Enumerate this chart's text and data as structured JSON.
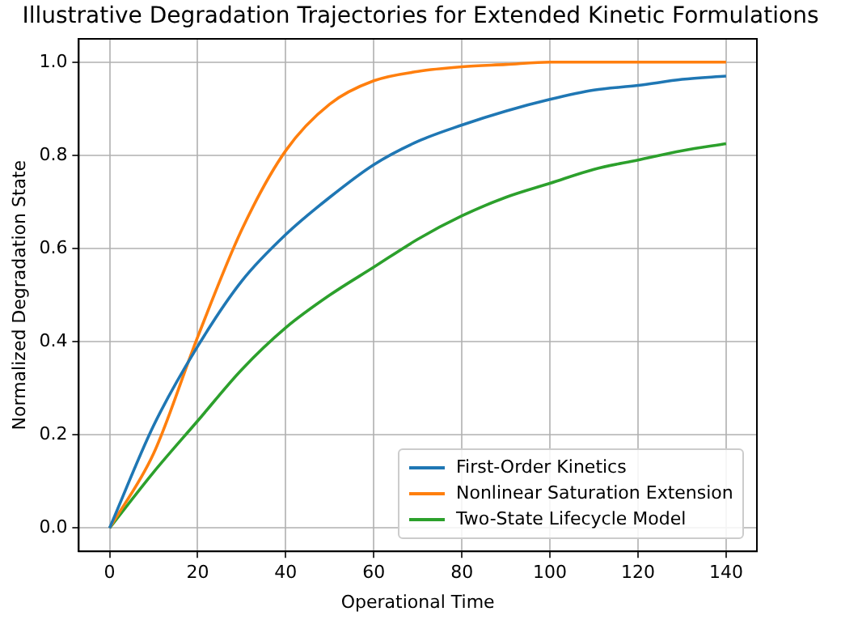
{
  "chart_data": {
    "type": "line",
    "title": "Illustrative Degradation Trajectories for Extended Kinetic Formulations",
    "xlabel": "Operational Time",
    "ylabel": "Normalized Degradation State",
    "x": [
      0,
      10,
      20,
      30,
      40,
      50,
      60,
      70,
      80,
      90,
      100,
      110,
      120,
      130,
      140
    ],
    "series": [
      {
        "name": "First-Order Kinetics",
        "color": "#1f77b4",
        "values": [
          0,
          0.22,
          0.39,
          0.53,
          0.63,
          0.71,
          0.78,
          0.83,
          0.865,
          0.895,
          0.92,
          0.94,
          0.95,
          0.963,
          0.97
        ]
      },
      {
        "name": "Nonlinear Saturation Extension",
        "color": "#ff7f0e",
        "values": [
          0,
          0.16,
          0.41,
          0.64,
          0.81,
          0.91,
          0.96,
          0.98,
          0.99,
          0.995,
          1,
          1,
          1,
          1,
          1
        ]
      },
      {
        "name": "Two-State Lifecycle Model",
        "color": "#2ca02c",
        "values": [
          0,
          0.12,
          0.23,
          0.34,
          0.43,
          0.5,
          0.56,
          0.62,
          0.67,
          0.71,
          0.74,
          0.77,
          0.79,
          0.81,
          0.825
        ]
      }
    ],
    "xlim": [
      -7,
      147
    ],
    "xticks": [
      0,
      20,
      40,
      60,
      80,
      100,
      120,
      140
    ],
    "ylim": [
      -0.05,
      1.05
    ],
    "yticks": [
      {
        "value": 0,
        "label": "0.0"
      },
      {
        "value": 0.2,
        "label": "0.2"
      },
      {
        "value": 0.4,
        "label": "0.4"
      },
      {
        "value": 0.6,
        "label": "0.6"
      },
      {
        "value": 0.8,
        "label": "0.8"
      },
      {
        "value": 1,
        "label": "1.0"
      }
    ],
    "grid": true,
    "legend": "bottom right",
    "marker": "none",
    "line_style": "solid"
  }
}
